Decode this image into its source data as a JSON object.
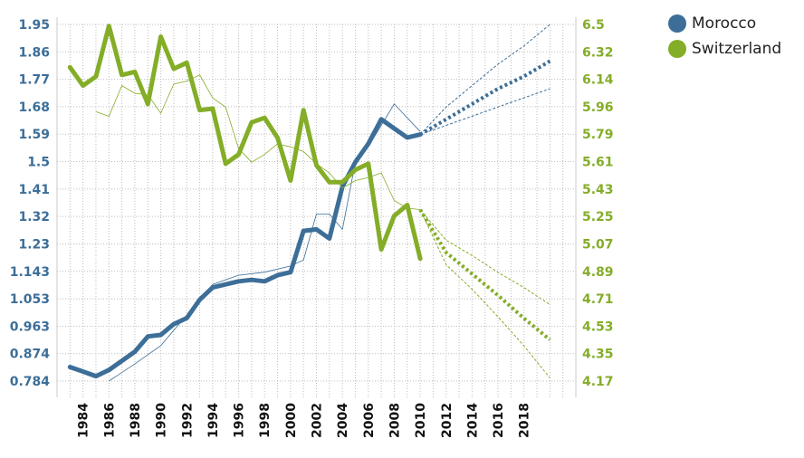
{
  "chart_data": {
    "type": "line",
    "x_ticks": [
      "1984",
      "1986",
      "1988",
      "1990",
      "1992",
      "1994",
      "1996",
      "1998",
      "2000",
      "2002",
      "2004",
      "2006",
      "2008",
      "2010",
      "2012",
      "2014",
      "2016",
      "2018"
    ],
    "y_left_ticks": [
      "1.95",
      "1.86",
      "1.77",
      "1.68",
      "1.59",
      "1.5",
      "1.41",
      "1.32",
      "1.23",
      "1.143",
      "1.053",
      "0.963",
      "0.874",
      "0.784"
    ],
    "y_right_ticks": [
      "6.5",
      "6.32",
      "6.14",
      "5.96",
      "5.79",
      "5.61",
      "5.43",
      "5.25",
      "5.07",
      "4.89",
      "4.71",
      "4.53",
      "4.35",
      "4.17"
    ],
    "y_left_range": [
      0.784,
      1.95
    ],
    "y_right_range": [
      4.17,
      6.5
    ],
    "x_range": [
      1982,
      2022
    ],
    "grid": true,
    "legend_position": "top-right",
    "series": [
      {
        "name": "Morocco",
        "color": "#3c6e98",
        "axis": "left",
        "x": [
          1983,
          1984,
          1985,
          1986,
          1987,
          1988,
          1989,
          1990,
          1991,
          1992,
          1993,
          1994,
          1995,
          1996,
          1997,
          1998,
          1999,
          2000,
          2001,
          2002,
          2003,
          2004,
          2005,
          2006,
          2007,
          2008,
          2009,
          2010
        ],
        "values": [
          0.83,
          0.815,
          0.8,
          0.82,
          0.85,
          0.88,
          0.93,
          0.935,
          0.97,
          0.99,
          1.05,
          1.09,
          1.1,
          1.11,
          1.115,
          1.11,
          1.13,
          1.14,
          1.275,
          1.28,
          1.25,
          1.42,
          1.5,
          1.56,
          1.64,
          1.61,
          1.58,
          1.59
        ],
        "thin_line": {
          "x": [
            1986,
            1988,
            1990,
            1992,
            1994,
            1996,
            1998,
            2000,
            2001,
            2002,
            2003,
            2004,
            2005,
            2006,
            2008,
            2010
          ],
          "values": [
            0.784,
            0.84,
            0.9,
            1.0,
            1.1,
            1.13,
            1.14,
            1.16,
            1.18,
            1.33,
            1.33,
            1.28,
            1.5,
            1.55,
            1.69,
            1.6
          ]
        },
        "forecast": {
          "x": [
            2010,
            2012,
            2014,
            2016,
            2018,
            2020
          ],
          "values": [
            1.59,
            1.64,
            1.69,
            1.74,
            1.78,
            1.83
          ],
          "upper": [
            1.59,
            1.68,
            1.75,
            1.82,
            1.88,
            1.95
          ],
          "lower": [
            1.59,
            1.62,
            1.65,
            1.68,
            1.71,
            1.74
          ]
        }
      },
      {
        "name": "Switzerland",
        "color": "#84ad28",
        "axis": "right",
        "x": [
          1983,
          1984,
          1985,
          1986,
          1987,
          1988,
          1989,
          1990,
          1991,
          1992,
          1993,
          1994,
          1995,
          1996,
          1997,
          1998,
          1999,
          2000,
          2001,
          2002,
          2003,
          2004,
          2005,
          2006,
          2007,
          2008,
          2009,
          2010
        ],
        "values": [
          6.22,
          6.1,
          6.16,
          6.49,
          6.17,
          6.19,
          5.98,
          6.42,
          6.21,
          6.25,
          5.94,
          5.95,
          5.59,
          5.65,
          5.86,
          5.89,
          5.76,
          5.48,
          5.94,
          5.58,
          5.47,
          5.47,
          5.55,
          5.59,
          5.03,
          5.25,
          5.32,
          4.97
        ],
        "thin_line": {
          "x": [
            1985,
            1986,
            1987,
            1988,
            1989,
            1990,
            1991,
            1992,
            1993,
            1994,
            1995,
            1996,
            1997,
            1998,
            1999,
            2000,
            2001,
            2002,
            2003,
            2004,
            2005,
            2006,
            2007,
            2008,
            2009,
            2010
          ],
          "values": [
            5.93,
            5.9,
            6.1,
            6.05,
            6.04,
            5.92,
            6.11,
            6.13,
            6.17,
            6.02,
            5.96,
            5.69,
            5.6,
            5.65,
            5.72,
            5.7,
            5.67,
            5.59,
            5.53,
            5.43,
            5.48,
            5.5,
            5.53,
            5.35,
            5.3,
            5.29
          ]
        },
        "forecast": {
          "x": [
            2010,
            2012,
            2014,
            2016,
            2018,
            2020
          ],
          "values": [
            5.29,
            5.01,
            4.87,
            4.73,
            4.58,
            4.44
          ],
          "upper": [
            5.29,
            5.09,
            4.99,
            4.88,
            4.78,
            4.67
          ],
          "lower": [
            5.29,
            4.93,
            4.77,
            4.59,
            4.4,
            4.19
          ]
        }
      }
    ]
  }
}
